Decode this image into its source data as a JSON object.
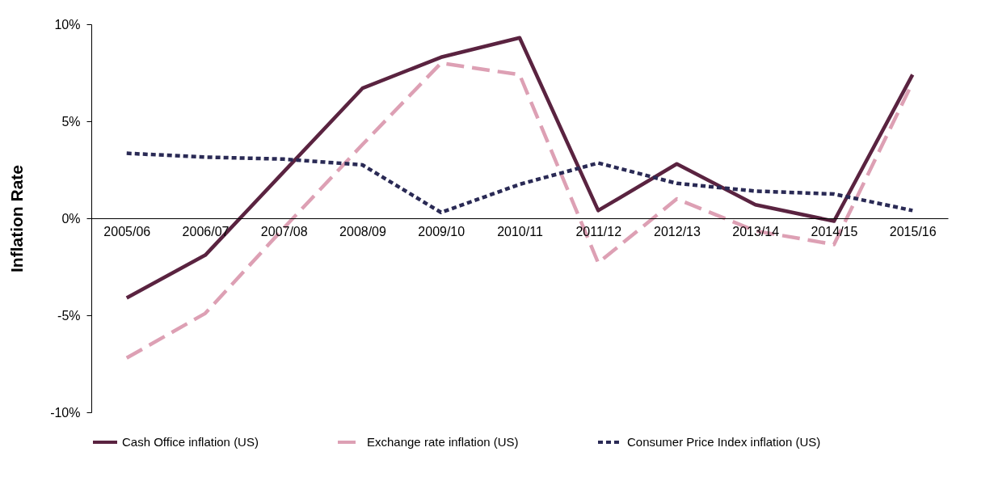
{
  "chart_data": {
    "type": "line",
    "ylabel": "Inflation Rate",
    "categories": [
      "2005/06",
      "2006/07",
      "2007/08",
      "2008/09",
      "2009/10",
      "2010/11",
      "2011/12",
      "2012/13",
      "2013/14",
      "2014/15",
      "2015/16"
    ],
    "series": [
      {
        "name": "Cash Office inflation (US)",
        "color": "#5a2340",
        "line_style": "solid",
        "values": [
          -4.1,
          -1.9,
          2.4,
          6.7,
          8.3,
          9.3,
          0.4,
          2.8,
          0.7,
          -0.15,
          7.4
        ]
      },
      {
        "name": "Exchange rate inflation (US)",
        "color": "#dda0b4",
        "line_style": "dashed",
        "values": [
          -7.2,
          -4.9,
          -0.5,
          3.8,
          8.0,
          7.4,
          -2.3,
          1.0,
          -0.65,
          -1.35,
          7.0
        ]
      },
      {
        "name": "Consumer Price Index inflation (US)",
        "color": "#2a2a55",
        "line_style": "dotted",
        "values": [
          3.35,
          3.15,
          3.05,
          2.75,
          0.3,
          1.75,
          2.85,
          1.8,
          1.4,
          1.25,
          0.4
        ]
      }
    ],
    "ylim": [
      -10,
      10
    ],
    "yticks": [
      {
        "value": -10,
        "label": "-10%"
      },
      {
        "value": -5,
        "label": "-5%"
      },
      {
        "value": 0,
        "label": "0%"
      },
      {
        "value": 5,
        "label": "5%"
      },
      {
        "value": 10,
        "label": "10%"
      }
    ],
    "grid": false,
    "legend": "bottom",
    "marker": "none"
  }
}
